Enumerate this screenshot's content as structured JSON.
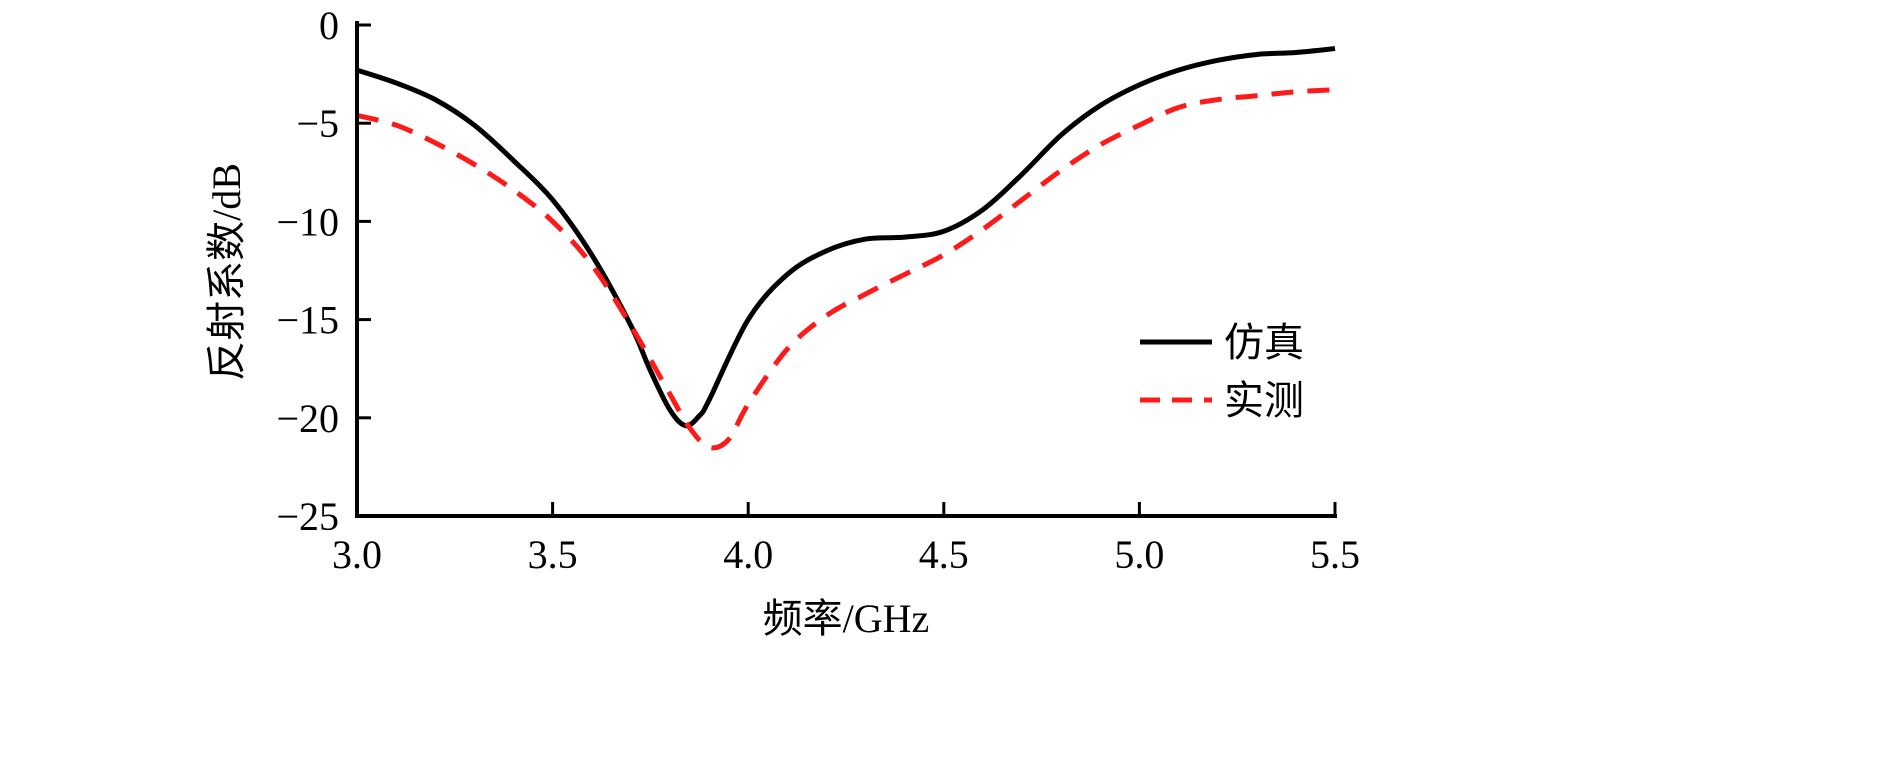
{
  "chart_data": {
    "type": "line",
    "title": "",
    "xlabel": "频率/GHz",
    "ylabel": "反射系数/dB",
    "xlim": [
      3.0,
      5.5
    ],
    "ylim": [
      -25,
      0
    ],
    "xticks": [
      3.0,
      3.5,
      4.0,
      4.5,
      5.0,
      5.5
    ],
    "xtick_labels": [
      "3.0",
      "3.5",
      "4.0",
      "4.5",
      "5.0",
      "5.5"
    ],
    "yticks": [
      0,
      -5,
      -10,
      -15,
      -20,
      -25
    ],
    "ytick_labels": [
      "0",
      "−5",
      "−10",
      "−15",
      "−20",
      "−25"
    ],
    "grid": false,
    "legend_position": "right",
    "series": [
      {
        "name": "仿真",
        "color": "#000000",
        "style": "solid",
        "x": [
          3.0,
          3.1,
          3.2,
          3.3,
          3.4,
          3.5,
          3.6,
          3.7,
          3.75,
          3.8,
          3.84,
          3.875,
          3.9,
          4.0,
          4.1,
          4.2,
          4.3,
          4.4,
          4.5,
          4.6,
          4.7,
          4.8,
          4.9,
          5.0,
          5.1,
          5.2,
          5.3,
          5.4,
          5.5
        ],
        "y": [
          -2.3,
          -2.95,
          -3.8,
          -5.1,
          -6.9,
          -8.9,
          -11.7,
          -15.3,
          -17.6,
          -19.6,
          -20.4,
          -19.9,
          -19.1,
          -15.0,
          -12.7,
          -11.5,
          -10.9,
          -10.8,
          -10.5,
          -9.4,
          -7.6,
          -5.6,
          -4.1,
          -3.05,
          -2.3,
          -1.8,
          -1.5,
          -1.4,
          -1.2
        ]
      },
      {
        "name": "实测",
        "color": "#ff1a1a",
        "style": "dashed",
        "x": [
          3.0,
          3.1,
          3.2,
          3.3,
          3.4,
          3.5,
          3.6,
          3.7,
          3.8,
          3.85,
          3.9,
          3.95,
          4.0,
          4.1,
          4.2,
          4.3,
          4.4,
          4.5,
          4.6,
          4.7,
          4.8,
          4.9,
          5.0,
          5.1,
          5.2,
          5.3,
          5.4,
          5.5
        ],
        "y": [
          -4.6,
          -5.1,
          -6.0,
          -7.1,
          -8.4,
          -10.0,
          -12.2,
          -15.3,
          -18.8,
          -20.5,
          -21.5,
          -21.1,
          -19.3,
          -16.5,
          -14.8,
          -13.7,
          -12.7,
          -11.7,
          -10.4,
          -8.9,
          -7.4,
          -6.1,
          -5.1,
          -4.2,
          -3.8,
          -3.6,
          -3.4,
          -3.3
        ]
      }
    ]
  }
}
